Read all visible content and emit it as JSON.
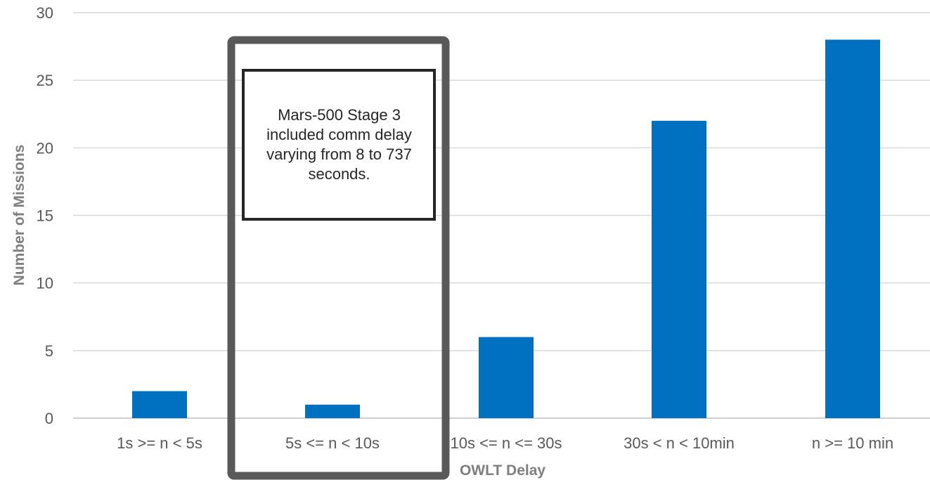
{
  "chart_data": {
    "type": "bar",
    "categories": [
      "1s >= n < 5s",
      "5s <= n < 10s",
      "10s <= n <= 30s",
      "30s < n < 10min",
      "n >= 10 min"
    ],
    "values": [
      2,
      1,
      6,
      22,
      28
    ],
    "yticks": [
      "0",
      "5",
      "10",
      "15",
      "20",
      "25",
      "30"
    ],
    "ylim": [
      0,
      30
    ],
    "xlabel": "OWLT Delay",
    "ylabel": "Number of Missions",
    "grid": true,
    "bar_color": "#0070c0",
    "highlight_category": "5s <= n < 10s",
    "annotation": "Mars-500 Stage 3 included comm delay varying from 8 to 737 seconds."
  }
}
